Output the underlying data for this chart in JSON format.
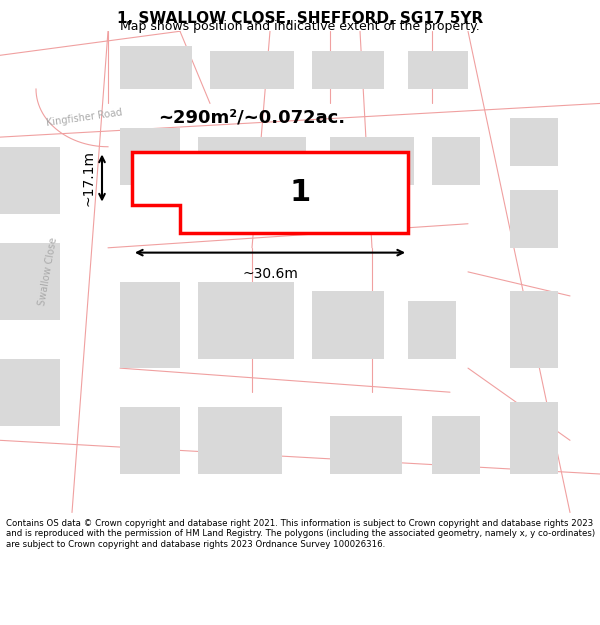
{
  "title": "1, SWALLOW CLOSE, SHEFFORD, SG17 5YR",
  "subtitle": "Map shows position and indicative extent of the property.",
  "area_label": "~290m²/~0.072ac.",
  "width_label": "~30.6m",
  "height_label": "~17.1m",
  "plot_number": "1",
  "footer": "Contains OS data © Crown copyright and database right 2021. This information is subject to Crown copyright and database rights 2023 and is reproduced with the permission of HM Land Registry. The polygons (including the associated geometry, namely x, y co-ordinates) are subject to Crown copyright and database rights 2023 Ordnance Survey 100026316.",
  "bg_color": "#ffffff",
  "map_bg": "#f5f5f5",
  "building_color": "#d9d9d9",
  "road_line_color": "#f0a0a0",
  "plot_color": "#ff0000",
  "road_label_color": "#bbbbbb",
  "title_color": "#000000",
  "annotation_color": "#000000"
}
